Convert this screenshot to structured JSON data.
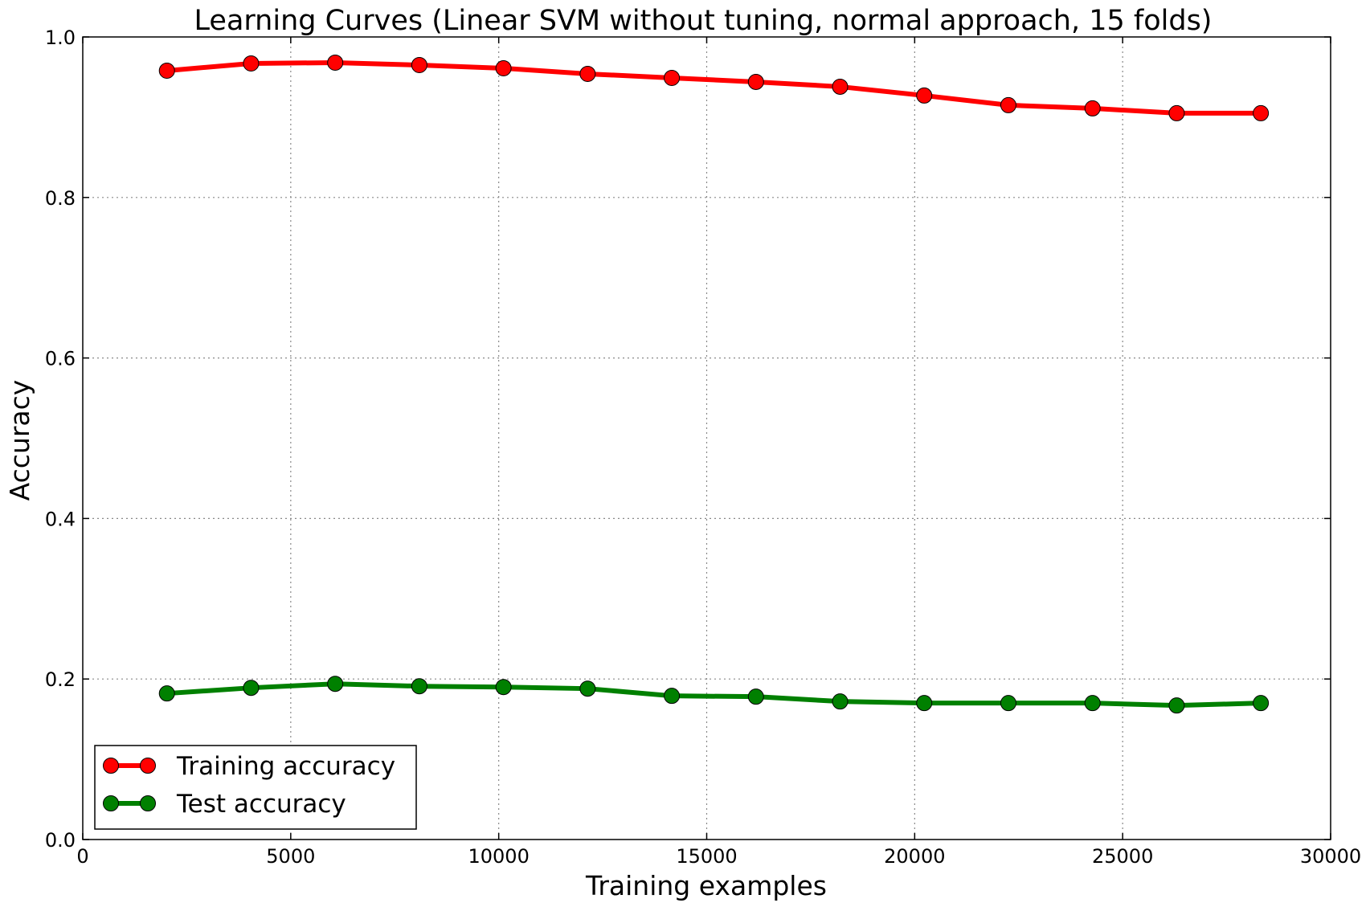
{
  "chart_data": {
    "type": "line",
    "title": "Learning Curves (Linear SVM without tuning, normal approach, 15 folds)",
    "xlabel": "Training examples",
    "ylabel": "Accuracy",
    "xlim": [
      0,
      30000
    ],
    "ylim": [
      0.0,
      1.0
    ],
    "xticks": [
      0,
      5000,
      10000,
      15000,
      20000,
      25000,
      30000
    ],
    "xtick_labels": [
      "0",
      "5000",
      "10000",
      "15000",
      "20000",
      "25000",
      "30000"
    ],
    "yticks": [
      0.0,
      0.2,
      0.4,
      0.6,
      0.8,
      1.0
    ],
    "ytick_labels": [
      "0.0",
      "0.2",
      "0.4",
      "0.6",
      "0.8",
      "1.0"
    ],
    "grid": true,
    "legend_position": "lower-left",
    "x": [
      2023,
      4046,
      6069,
      8092,
      10115,
      12138,
      14161,
      16184,
      18207,
      20230,
      22253,
      24276,
      26299,
      28322
    ],
    "series": [
      {
        "name": "Training accuracy",
        "color": "#ff0000",
        "values": [
          0.958,
          0.967,
          0.968,
          0.965,
          0.961,
          0.954,
          0.949,
          0.944,
          0.938,
          0.927,
          0.915,
          0.911,
          0.905,
          0.905
        ]
      },
      {
        "name": "Test accuracy",
        "color": "#008000",
        "values": [
          0.182,
          0.189,
          0.194,
          0.191,
          0.19,
          0.188,
          0.179,
          0.178,
          0.172,
          0.17,
          0.17,
          0.17,
          0.167,
          0.17
        ]
      }
    ]
  }
}
